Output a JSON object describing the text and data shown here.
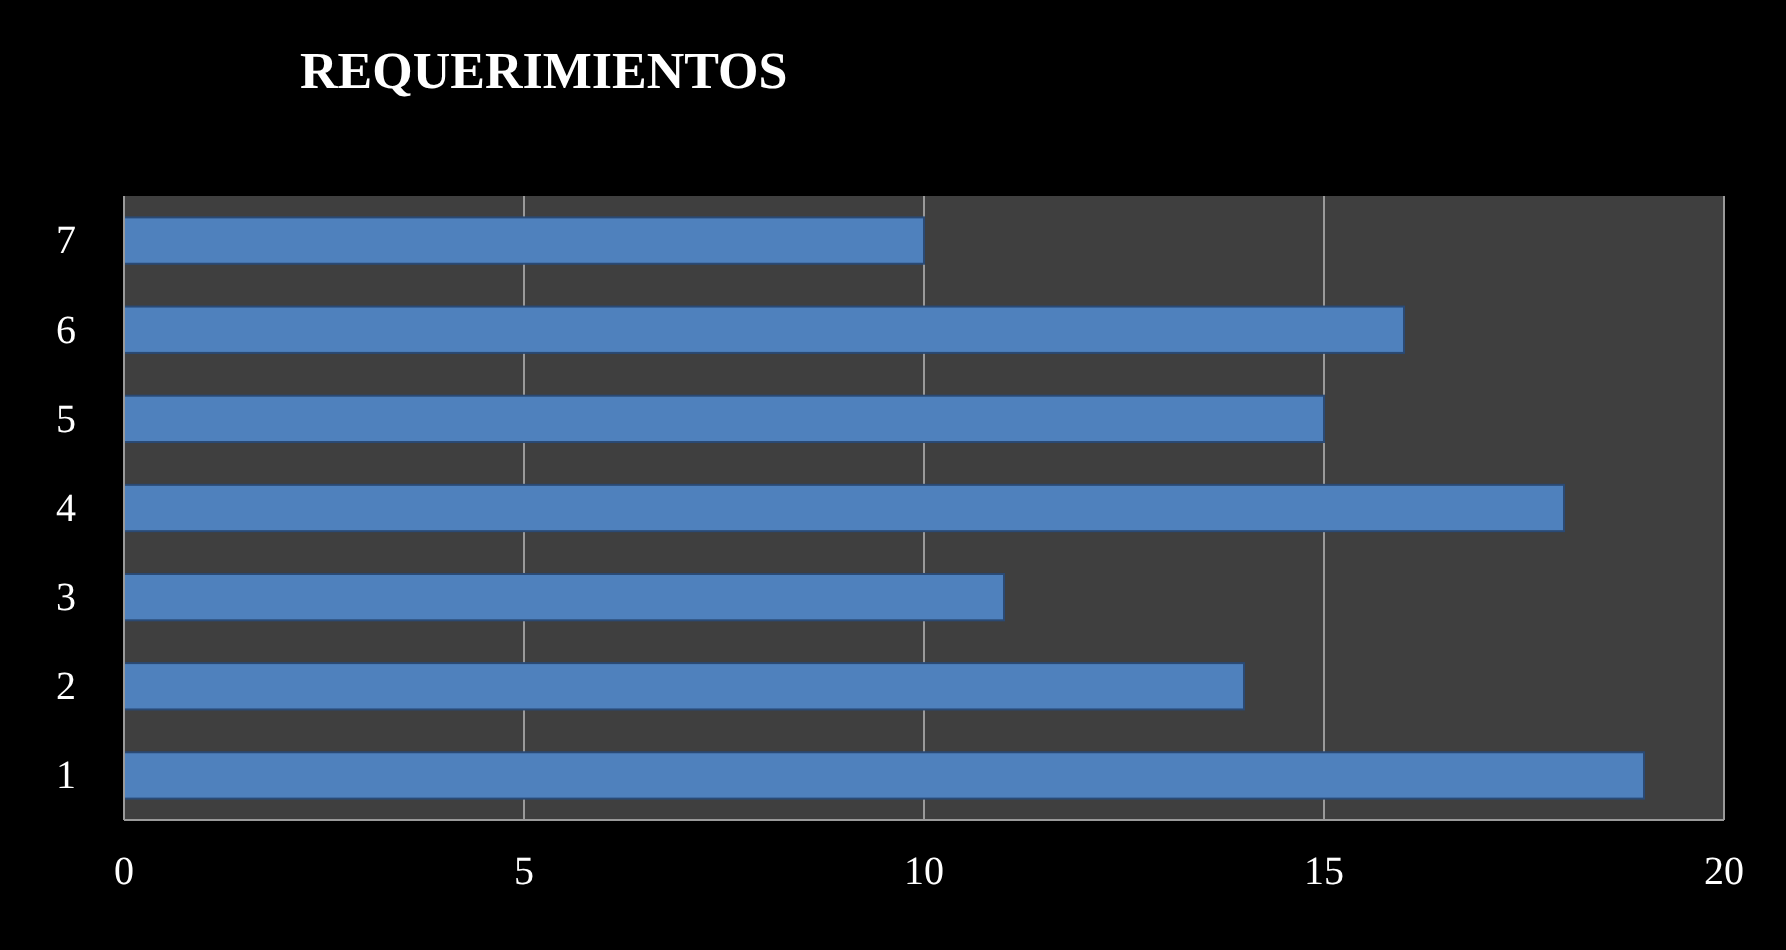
{
  "chart_data": {
    "type": "bar",
    "orientation": "horizontal",
    "title": "REQUERIMIENTOS",
    "categories": [
      "7",
      "6",
      "5",
      "4",
      "3",
      "2",
      "1"
    ],
    "values": [
      10,
      16,
      15,
      18,
      11,
      14,
      19
    ],
    "color": "#4f81bd",
    "xlim": [
      0,
      20
    ],
    "xticks": [
      0,
      5,
      10,
      15,
      20
    ],
    "grid": "x"
  }
}
